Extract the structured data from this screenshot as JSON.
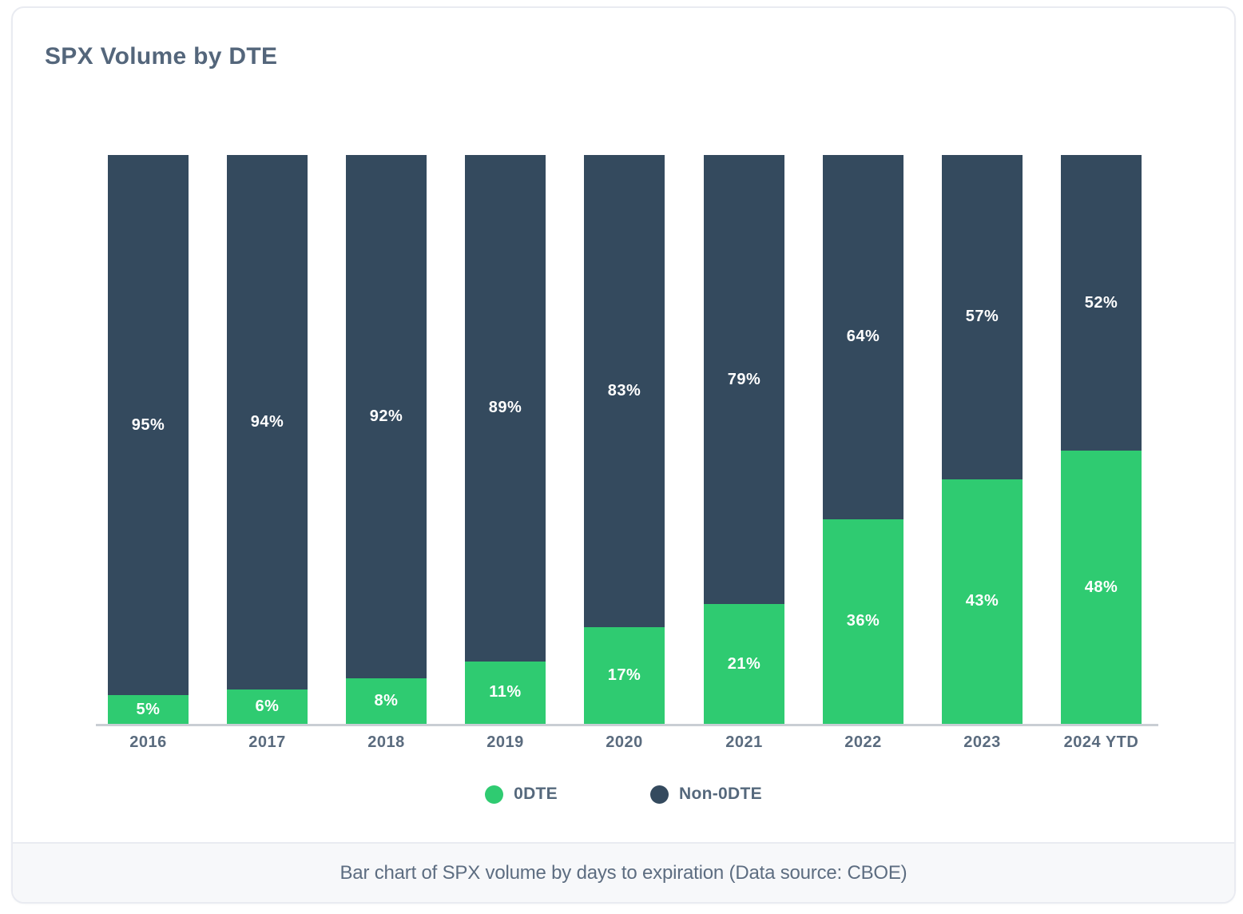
{
  "card": {
    "title": "SPX Volume by DTE",
    "caption": "Bar chart of SPX volume by days to expiration (Data source: CBOE)"
  },
  "legend": {
    "items": [
      {
        "label": "0DTE",
        "color": "#2FCB71"
      },
      {
        "label": "Non-0DTE",
        "color": "#344A5E"
      }
    ]
  },
  "chart_data": {
    "type": "bar",
    "variant": "stacked-100-percent",
    "title": "SPX Volume by DTE",
    "categories": [
      "2016",
      "2017",
      "2018",
      "2019",
      "2020",
      "2021",
      "2022",
      "2023",
      "2024 YTD"
    ],
    "series": [
      {
        "name": "0DTE",
        "color": "#2FCB71",
        "values": [
          5,
          6,
          8,
          11,
          17,
          21,
          36,
          43,
          48
        ]
      },
      {
        "name": "Non-0DTE",
        "color": "#344A5E",
        "values": [
          95,
          94,
          92,
          89,
          83,
          79,
          64,
          57,
          52
        ]
      }
    ],
    "unit": "%",
    "ylim": [
      0,
      100
    ],
    "grid": false,
    "y_axis_labels": false,
    "legend_position": "bottom",
    "value_labels": "inside-center-white",
    "data_source": "CBOE"
  },
  "colors": {
    "odte_green": "#2FCB71",
    "non_odte_navy": "#344A5E",
    "heading_text": "#54667B",
    "axis_text": "#5A6B7E",
    "caption_text": "#5D6D81",
    "axis_line": "#C9CED4",
    "card_border": "#E9EBF1",
    "caption_bg": "#F7F8FA"
  }
}
